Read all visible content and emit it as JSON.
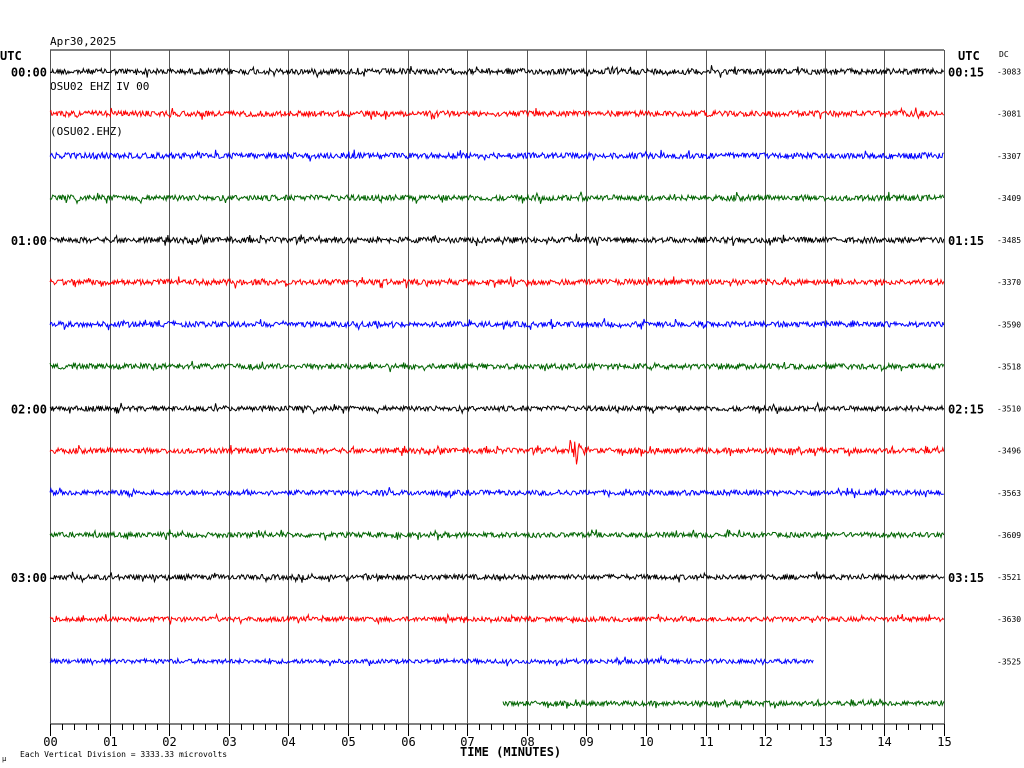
{
  "header": {
    "date": "Apr30,2025",
    "station_line": "OSU02 EHZ IV 00",
    "code_line": "(OSU02.EHZ)"
  },
  "chart_data": {
    "type": "line",
    "title": "",
    "xlabel": "TIME (MINUTES)",
    "ylabel": "",
    "left_zone_label": "UTC",
    "right_zone_label": "UTC",
    "dc_label": "DC",
    "scale_note": "Each Vertical Division = 3333.33 microvolts",
    "corner_mark": "µ",
    "x_range": [
      0,
      15
    ],
    "x_tick_labels": [
      "00",
      "01",
      "02",
      "03",
      "04",
      "05",
      "06",
      "07",
      "08",
      "09",
      "10",
      "11",
      "12",
      "13",
      "14",
      "15"
    ],
    "trace_colors": [
      "#000000",
      "#ff0000",
      "#0000ff",
      "#006400"
    ],
    "grid": true,
    "traces": [
      {
        "left": "00:00",
        "right": "00:15",
        "dc": "-3083",
        "start": 0,
        "end": 15,
        "amp": 0.9
      },
      {
        "left": "",
        "right": "",
        "dc": "-3081",
        "start": 0,
        "end": 15,
        "amp": 0.9
      },
      {
        "left": "",
        "right": "",
        "dc": "-3307",
        "start": 0,
        "end": 15,
        "amp": 0.9
      },
      {
        "left": "",
        "right": "",
        "dc": "-3409",
        "start": 0,
        "end": 15,
        "amp": 0.9
      },
      {
        "left": "01:00",
        "right": "01:15",
        "dc": "-3485",
        "start": 0,
        "end": 15,
        "amp": 0.9
      },
      {
        "left": "",
        "right": "",
        "dc": "-3370",
        "start": 0,
        "end": 15,
        "amp": 0.9
      },
      {
        "left": "",
        "right": "",
        "dc": "-3590",
        "start": 0,
        "end": 15,
        "amp": 0.85
      },
      {
        "left": "",
        "right": "",
        "dc": "-3518",
        "start": 0,
        "end": 15,
        "amp": 0.85
      },
      {
        "left": "02:00",
        "right": "02:15",
        "dc": "-3510",
        "start": 0,
        "end": 15,
        "amp": 0.8
      },
      {
        "left": "",
        "right": "",
        "dc": "-3496",
        "start": 0,
        "end": 15,
        "amp": 0.85,
        "event_at": 8.8
      },
      {
        "left": "",
        "right": "",
        "dc": "-3563",
        "start": 0,
        "end": 15,
        "amp": 0.8
      },
      {
        "left": "",
        "right": "",
        "dc": "-3609",
        "start": 0,
        "end": 15,
        "amp": 0.8
      },
      {
        "left": "03:00",
        "right": "03:15",
        "dc": "-3521",
        "start": 0,
        "end": 15,
        "amp": 0.8
      },
      {
        "left": "",
        "right": "",
        "dc": "-3630",
        "start": 0,
        "end": 15,
        "amp": 0.75
      },
      {
        "left": "",
        "right": "",
        "dc": "-3525",
        "start": 0,
        "end": 12.82,
        "amp": 0.7
      },
      {
        "left": "",
        "right": "",
        "dc": "",
        "start": 7.6,
        "end": 15,
        "amp": 0.75
      }
    ]
  }
}
